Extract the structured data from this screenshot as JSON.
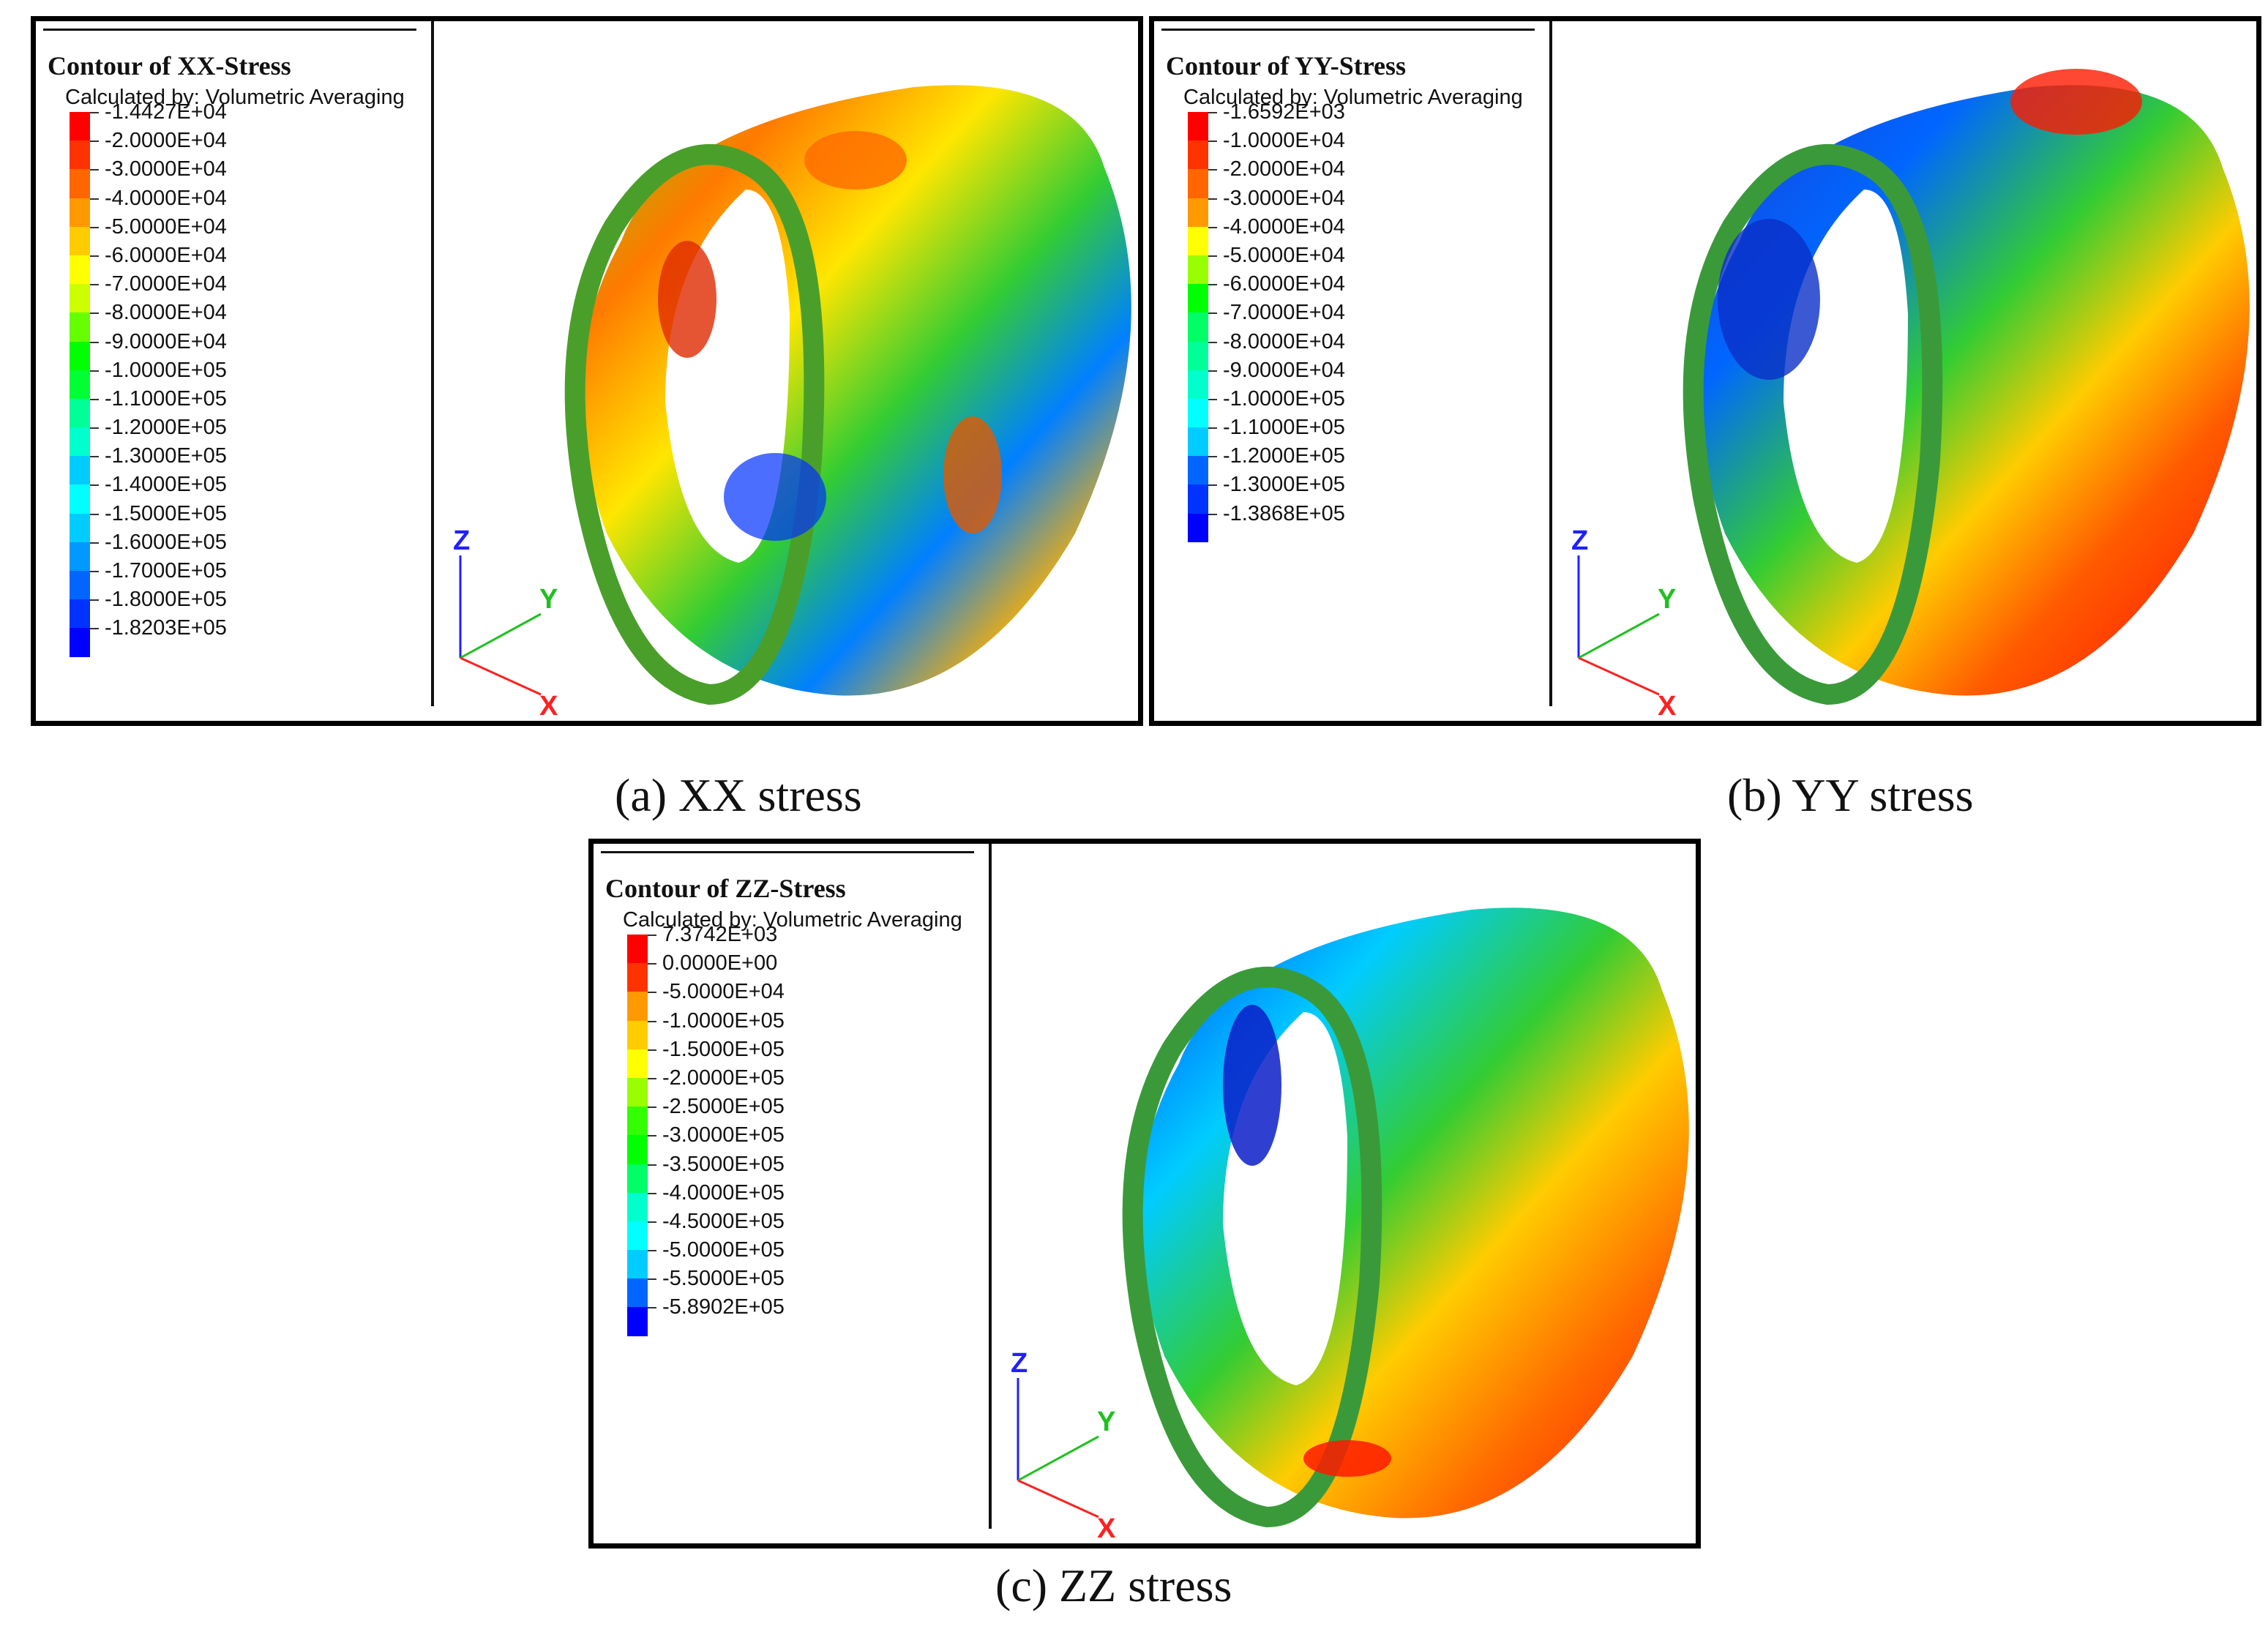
{
  "panels": [
    {
      "id": "xx",
      "title": "Contour of XX-Stress",
      "subtitle": "Calculated by: Volumetric Averaging",
      "legend": [
        {
          "label": "-1.4427E+04",
          "color": "#ff0000"
        },
        {
          "label": "-2.0000E+04",
          "color": "#ff3300"
        },
        {
          "label": "-3.0000E+04",
          "color": "#ff6600"
        },
        {
          "label": "-4.0000E+04",
          "color": "#ff9900"
        },
        {
          "label": "-5.0000E+04",
          "color": "#ffcc00"
        },
        {
          "label": "-6.0000E+04",
          "color": "#ffff00"
        },
        {
          "label": "-7.0000E+04",
          "color": "#ccff00"
        },
        {
          "label": "-8.0000E+04",
          "color": "#66ff00"
        },
        {
          "label": "-9.0000E+04",
          "color": "#00ff00"
        },
        {
          "label": "-1.0000E+05",
          "color": "#00ff33"
        },
        {
          "label": "-1.1000E+05",
          "color": "#00ff99"
        },
        {
          "label": "-1.2000E+05",
          "color": "#00ffcc"
        },
        {
          "label": "-1.3000E+05",
          "color": "#00ccff"
        },
        {
          "label": "-1.4000E+05",
          "color": "#00ffff"
        },
        {
          "label": "-1.5000E+05",
          "color": "#00ccff"
        },
        {
          "label": "-1.6000E+05",
          "color": "#0099ff"
        },
        {
          "label": "-1.7000E+05",
          "color": "#0066ff"
        },
        {
          "label": "-1.8000E+05",
          "color": "#0033ff"
        },
        {
          "label": "-1.8203E+05",
          "color": "#0000ff"
        }
      ],
      "axes": {
        "z": "Z",
        "y": "Y",
        "x": "X"
      }
    },
    {
      "id": "yy",
      "title": "Contour of YY-Stress",
      "subtitle": "Calculated by: Volumetric Averaging",
      "legend": [
        {
          "label": "-1.6592E+03",
          "color": "#ff0000"
        },
        {
          "label": "-1.0000E+04",
          "color": "#ff3300"
        },
        {
          "label": "-2.0000E+04",
          "color": "#ff6600"
        },
        {
          "label": "-3.0000E+04",
          "color": "#ff9900"
        },
        {
          "label": "-4.0000E+04",
          "color": "#ffff00"
        },
        {
          "label": "-5.0000E+04",
          "color": "#99ff00"
        },
        {
          "label": "-6.0000E+04",
          "color": "#00ff00"
        },
        {
          "label": "-7.0000E+04",
          "color": "#00ff66"
        },
        {
          "label": "-8.0000E+04",
          "color": "#00ff99"
        },
        {
          "label": "-9.0000E+04",
          "color": "#00ffcc"
        },
        {
          "label": "-1.0000E+05",
          "color": "#00ffff"
        },
        {
          "label": "-1.1000E+05",
          "color": "#00ccff"
        },
        {
          "label": "-1.2000E+05",
          "color": "#0066ff"
        },
        {
          "label": "-1.3000E+05",
          "color": "#0033ff"
        },
        {
          "label": "-1.3868E+05",
          "color": "#0000ff"
        }
      ],
      "axes": {
        "z": "Z",
        "y": "Y",
        "x": "X"
      }
    },
    {
      "id": "zz",
      "title": "Contour of ZZ-Stress",
      "subtitle": "Calculated by: Volumetric Averaging",
      "legend": [
        {
          "label": "7.3742E+03",
          "color": "#ff0000"
        },
        {
          "label": "0.0000E+00",
          "color": "#ff3300"
        },
        {
          "label": "-5.0000E+04",
          "color": "#ff9900"
        },
        {
          "label": "-1.0000E+05",
          "color": "#ffcc00"
        },
        {
          "label": "-1.5000E+05",
          "color": "#ffff00"
        },
        {
          "label": "-2.0000E+05",
          "color": "#99ff00"
        },
        {
          "label": "-2.5000E+05",
          "color": "#33ff00"
        },
        {
          "label": "-3.0000E+05",
          "color": "#00ff00"
        },
        {
          "label": "-3.5000E+05",
          "color": "#00ff66"
        },
        {
          "label": "-4.0000E+05",
          "color": "#00ffcc"
        },
        {
          "label": "-4.5000E+05",
          "color": "#00ffff"
        },
        {
          "label": "-5.0000E+05",
          "color": "#00ccff"
        },
        {
          "label": "-5.5000E+05",
          "color": "#0066ff"
        },
        {
          "label": "-5.8902E+05",
          "color": "#0000ff"
        }
      ],
      "axes": {
        "z": "Z",
        "y": "Y",
        "x": "X"
      }
    }
  ],
  "captions": {
    "a": "(a) XX stress",
    "b": "(b) YY stress",
    "c": "(c) ZZ stress"
  }
}
